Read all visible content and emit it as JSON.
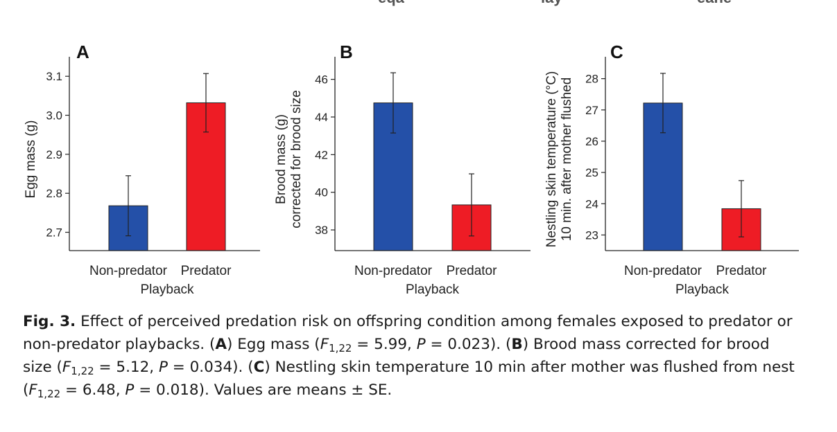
{
  "top_cut_text": [
    "eqa",
    "lay",
    "eane"
  ],
  "chart_data": [
    {
      "type": "bar",
      "panel": "A",
      "categories": [
        "Non-predator",
        "Predator"
      ],
      "values": [
        2.768,
        3.032
      ],
      "errors": [
        0.077,
        0.075
      ],
      "colors": [
        "#2450A8",
        "#EE1C25"
      ],
      "xlabel": "Playback",
      "ylabel": [
        "Egg mass (g)"
      ],
      "yticks": [
        2.7,
        2.8,
        2.9,
        3.0,
        3.1
      ],
      "ytick_labels": [
        "2.7",
        "2.8",
        "2.9",
        "3.0",
        "3.1"
      ],
      "ylim": [
        2.653,
        3.15
      ]
    },
    {
      "type": "bar",
      "panel": "B",
      "categories": [
        "Non-predator",
        "Predator"
      ],
      "values": [
        44.75,
        39.33
      ],
      "errors": [
        1.6,
        1.65
      ],
      "colors": [
        "#2450A8",
        "#EE1C25"
      ],
      "xlabel": "Playback",
      "ylabel": [
        "Brood mass (g)",
        "corrected for brood size"
      ],
      "yticks": [
        38,
        40,
        42,
        44,
        46
      ],
      "ytick_labels": [
        "38",
        "40",
        "42",
        "44",
        "46"
      ],
      "ylim": [
        36.9,
        47.2
      ]
    },
    {
      "type": "bar",
      "panel": "C",
      "categories": [
        "Non-predator",
        "Predator"
      ],
      "values": [
        27.22,
        23.84
      ],
      "errors": [
        0.95,
        0.9
      ],
      "colors": [
        "#2450A8",
        "#EE1C25"
      ],
      "xlabel": "Playback",
      "ylabel": [
        "Nestling skin temperature (°C)",
        "10 min. after mother flushed"
      ],
      "yticks": [
        23,
        24,
        25,
        26,
        27,
        28
      ],
      "ytick_labels": [
        "23",
        "24",
        "25",
        "26",
        "27",
        "28"
      ],
      "ylim": [
        22.5,
        28.7
      ]
    }
  ],
  "caption": {
    "fig_label": "Fig. 3.",
    "line1_text": " Effect of perceived predation risk on offspring condition among females exposed to predator or",
    "line2_a": "non-predator playbacks. (",
    "line2_A": "A",
    "line2_b": ") Egg mass (",
    "line2_F": "F",
    "line2_sub": "1,22",
    "line2_c": " = 5.99, ",
    "line2_P": "P",
    "line2_d": " = 0.023). (",
    "line2_B": "B",
    "line2_e": ") Brood mass corrected for brood",
    "line3_a": "size (",
    "line3_F": "F",
    "line3_sub": "1,22",
    "line3_b": " = 5.12, ",
    "line3_P": "P",
    "line3_c": " = 0.034). (",
    "line3_C": "C",
    "line3_d": ") Nestling skin temperature 10 min after mother was flushed from nest",
    "line4_a": "(",
    "line4_F": "F",
    "line4_sub": "1,22",
    "line4_b": " = 6.48, ",
    "line4_P": "P",
    "line4_c": " = 0.018). Values are means ± SE."
  }
}
